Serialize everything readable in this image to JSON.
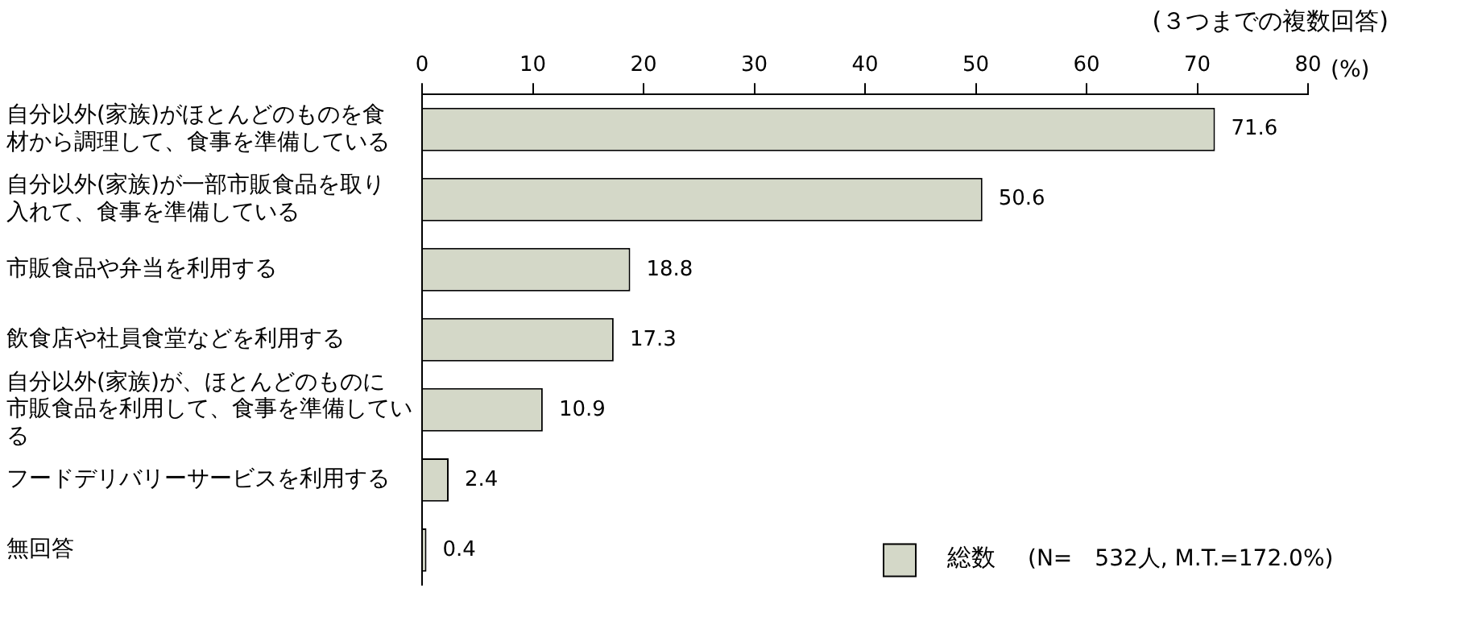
{
  "chart_data": {
    "type": "bar",
    "orientation": "horizontal",
    "categories": [
      "自分以外(家族)がほとんどのものを食材から調理して、食事を準備している",
      "自分以外(家族)が一部市販食品を取り入れて、食事を準備している",
      "市販食品や弁当を利用する",
      "飲食店や社員食堂などを利用する",
      "自分以外(家族)が、ほとんどのものに市販食品を利用して、食事を準備している",
      "フードデリバリーサービスを利用する",
      "無回答"
    ],
    "series": [
      {
        "name": "総数",
        "color": "#d4d8c8",
        "values": [
          71.6,
          50.6,
          18.8,
          17.3,
          10.9,
          2.4,
          0.4
        ]
      }
    ],
    "xlim": [
      0,
      80
    ],
    "xticks": [
      0,
      10,
      20,
      30,
      40,
      50,
      60,
      70,
      80
    ],
    "xlabel": "(%)",
    "data_labels": true,
    "grid": false,
    "legend": "bottom right",
    "annotations": [
      "(３つまでの複数回答)",
      "(N=　532人, M.T.=172.0%)"
    ]
  }
}
